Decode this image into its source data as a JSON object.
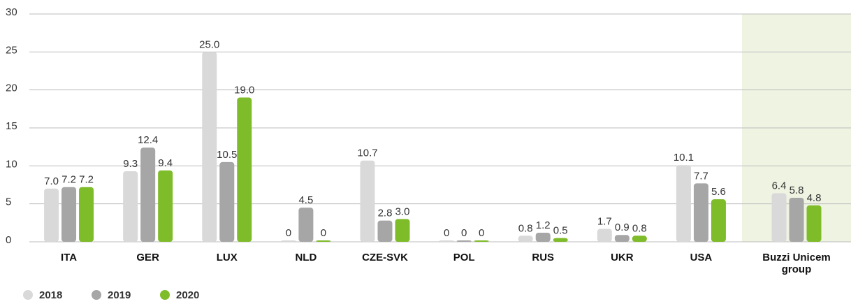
{
  "chart_data": {
    "type": "bar",
    "categories": [
      "ITA",
      "GER",
      "LUX",
      "NLD",
      "CZE-SVK",
      "POL",
      "RUS",
      "UKR",
      "USA",
      "Buzzi Unicem group"
    ],
    "series": [
      {
        "name": "2018",
        "color": "#d9d9d9",
        "values": [
          7.0,
          9.3,
          25.0,
          0,
          10.7,
          0,
          0.8,
          1.7,
          10.1,
          6.4
        ],
        "value_labels": [
          "7.0",
          "9.3",
          "25.0",
          "0",
          "10.7",
          "0",
          "0.8",
          "1.7",
          "10.1",
          "6.4"
        ]
      },
      {
        "name": "2019",
        "color": "#a6a6a6",
        "values": [
          7.2,
          12.4,
          10.5,
          4.5,
          2.8,
          0,
          1.2,
          0.9,
          7.7,
          5.8
        ],
        "value_labels": [
          "7.2",
          "12.4",
          "10.5",
          "4.5",
          "2.8",
          "0",
          "1.2",
          "0.9",
          "7.7",
          "5.8"
        ]
      },
      {
        "name": "2020",
        "color": "#7fbc2a",
        "values": [
          7.2,
          9.4,
          19.0,
          0,
          3.0,
          0,
          0.5,
          0.8,
          5.6,
          4.8
        ],
        "value_labels": [
          "7.2",
          "9.4",
          "19.0",
          "0",
          "3.0",
          "0",
          "0.5",
          "0.8",
          "5.6",
          "4.8"
        ]
      }
    ],
    "ylim": [
      0,
      30
    ],
    "yticks": [
      0,
      5,
      10,
      15,
      20,
      25,
      30
    ],
    "grid": true,
    "legend": "bottom-left"
  }
}
